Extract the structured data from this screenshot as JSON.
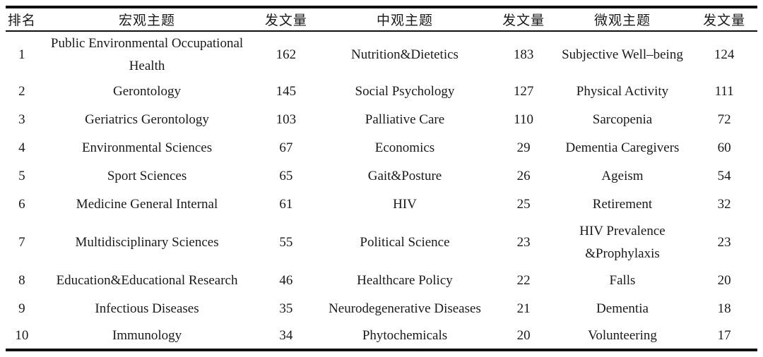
{
  "table": {
    "headers": [
      {
        "label": "排名"
      },
      {
        "label": "宏观主题"
      },
      {
        "label": "发文量"
      },
      {
        "label": "中观主题"
      },
      {
        "label": "发文量"
      },
      {
        "label": "微观主题"
      },
      {
        "label": "发文量"
      }
    ],
    "rows": [
      [
        "1",
        "Public Environmental Occupational Health",
        "162",
        "Nutrition&Dietetics",
        "183",
        "Subjective Well–being",
        "124"
      ],
      [
        "2",
        "Gerontology",
        "145",
        "Social Psychology",
        "127",
        "Physical Activity",
        "111"
      ],
      [
        "3",
        "Geriatrics Gerontology",
        "103",
        "Palliative Care",
        "110",
        "Sarcopenia",
        "72"
      ],
      [
        "4",
        "Environmental Sciences",
        "67",
        "Economics",
        "29",
        "Dementia Caregivers",
        "60"
      ],
      [
        "5",
        "Sport Sciences",
        "65",
        "Gait&Posture",
        "26",
        "Ageism",
        "54"
      ],
      [
        "6",
        "Medicine General Internal",
        "61",
        "HIV",
        "25",
        "Retirement",
        "32"
      ],
      [
        "7",
        "Multidisciplinary Sciences",
        "55",
        "Political Science",
        "23",
        "HIV Prevalence &Prophylaxis",
        "23"
      ],
      [
        "8",
        "Education&Educational Research",
        "46",
        "Healthcare Policy",
        "22",
        "Falls",
        "20"
      ],
      [
        "9",
        "Infectious Diseases",
        "35",
        "Neurodegenerative Diseases",
        "21",
        "Dementia",
        "18"
      ],
      [
        "10",
        "Immunology",
        "34",
        "Phytochemicals",
        "20",
        "Volunteering",
        "17"
      ]
    ],
    "colors": {
      "text": "#1a1a1a",
      "rule": "#0f0f0f",
      "background": "#ffffff"
    }
  },
  "chart_data": {
    "type": "table",
    "title": "",
    "columns": [
      "排名",
      "宏观主题",
      "发文量",
      "中观主题",
      "发文量",
      "微观主题",
      "发文量"
    ],
    "macro_topics": {
      "names": [
        "Public Environmental Occupational Health",
        "Gerontology",
        "Geriatrics Gerontology",
        "Environmental Sciences",
        "Sport Sciences",
        "Medicine General Internal",
        "Multidisciplinary Sciences",
        "Education&Educational Research",
        "Infectious Diseases",
        "Immunology"
      ],
      "counts": [
        162,
        145,
        103,
        67,
        65,
        61,
        55,
        46,
        35,
        34
      ]
    },
    "meso_topics": {
      "names": [
        "Nutrition&Dietetics",
        "Social Psychology",
        "Palliative Care",
        "Economics",
        "Gait&Posture",
        "HIV",
        "Political Science",
        "Healthcare Policy",
        "Neurodegenerative Diseases",
        "Phytochemicals"
      ],
      "counts": [
        183,
        127,
        110,
        29,
        26,
        25,
        23,
        22,
        21,
        20
      ]
    },
    "micro_topics": {
      "names": [
        "Subjective Well–being",
        "Physical Activity",
        "Sarcopenia",
        "Dementia Caregivers",
        "Ageism",
        "Retirement",
        "HIV Prevalence &Prophylaxis",
        "Falls",
        "Dementia",
        "Volunteering"
      ],
      "counts": [
        124,
        111,
        72,
        60,
        54,
        32,
        23,
        20,
        18,
        17
      ]
    }
  }
}
